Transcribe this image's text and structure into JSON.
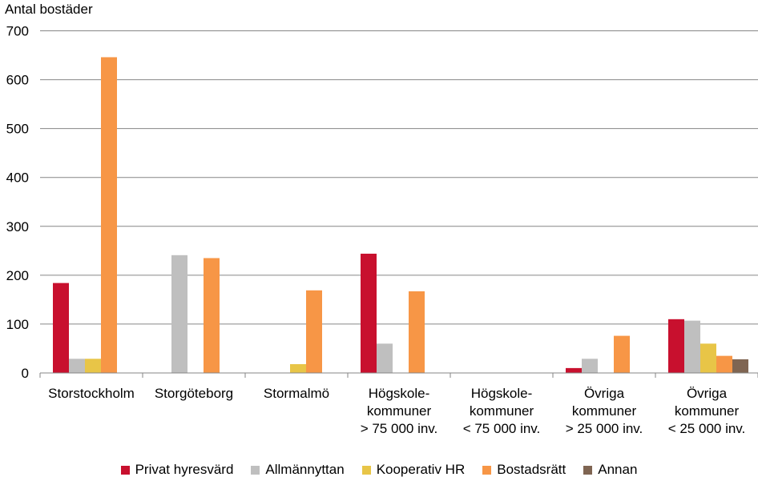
{
  "chart_data": {
    "type": "bar",
    "ylabel": "Antal bostäder",
    "xlabel": "",
    "ylim": [
      0,
      700
    ],
    "yticks": [
      0,
      100,
      200,
      300,
      400,
      500,
      600,
      700
    ],
    "grid": true,
    "legend_position": "bottom",
    "categories": [
      [
        "Storstockholm"
      ],
      [
        "Storgöteborg"
      ],
      [
        "Stormalmö"
      ],
      [
        "Högskole-",
        "kommuner",
        "> 75 000 inv."
      ],
      [
        "Högskole-",
        "kommuner",
        "< 75 000 inv."
      ],
      [
        "Övriga",
        "kommuner",
        "> 25 000 inv."
      ],
      [
        "Övriga",
        "kommuner",
        "< 25 000 inv."
      ]
    ],
    "series": [
      {
        "name": "Privat hyresvärd",
        "color": "#c8102e",
        "values": [
          184,
          0,
          0,
          244,
          0,
          10,
          110
        ]
      },
      {
        "name": "Allmännyttan",
        "color": "#bfbfbf",
        "values": [
          29,
          241,
          0,
          60,
          0,
          29,
          107
        ]
      },
      {
        "name": "Kooperativ HR",
        "color": "#e8c547",
        "values": [
          29,
          0,
          18,
          0,
          0,
          0,
          60
        ]
      },
      {
        "name": "Bostadsrätt",
        "color": "#f79646",
        "values": [
          646,
          235,
          169,
          167,
          0,
          76,
          35
        ]
      },
      {
        "name": "Annan",
        "color": "#7f6552",
        "values": [
          0,
          0,
          0,
          0,
          0,
          0,
          28
        ]
      }
    ]
  }
}
